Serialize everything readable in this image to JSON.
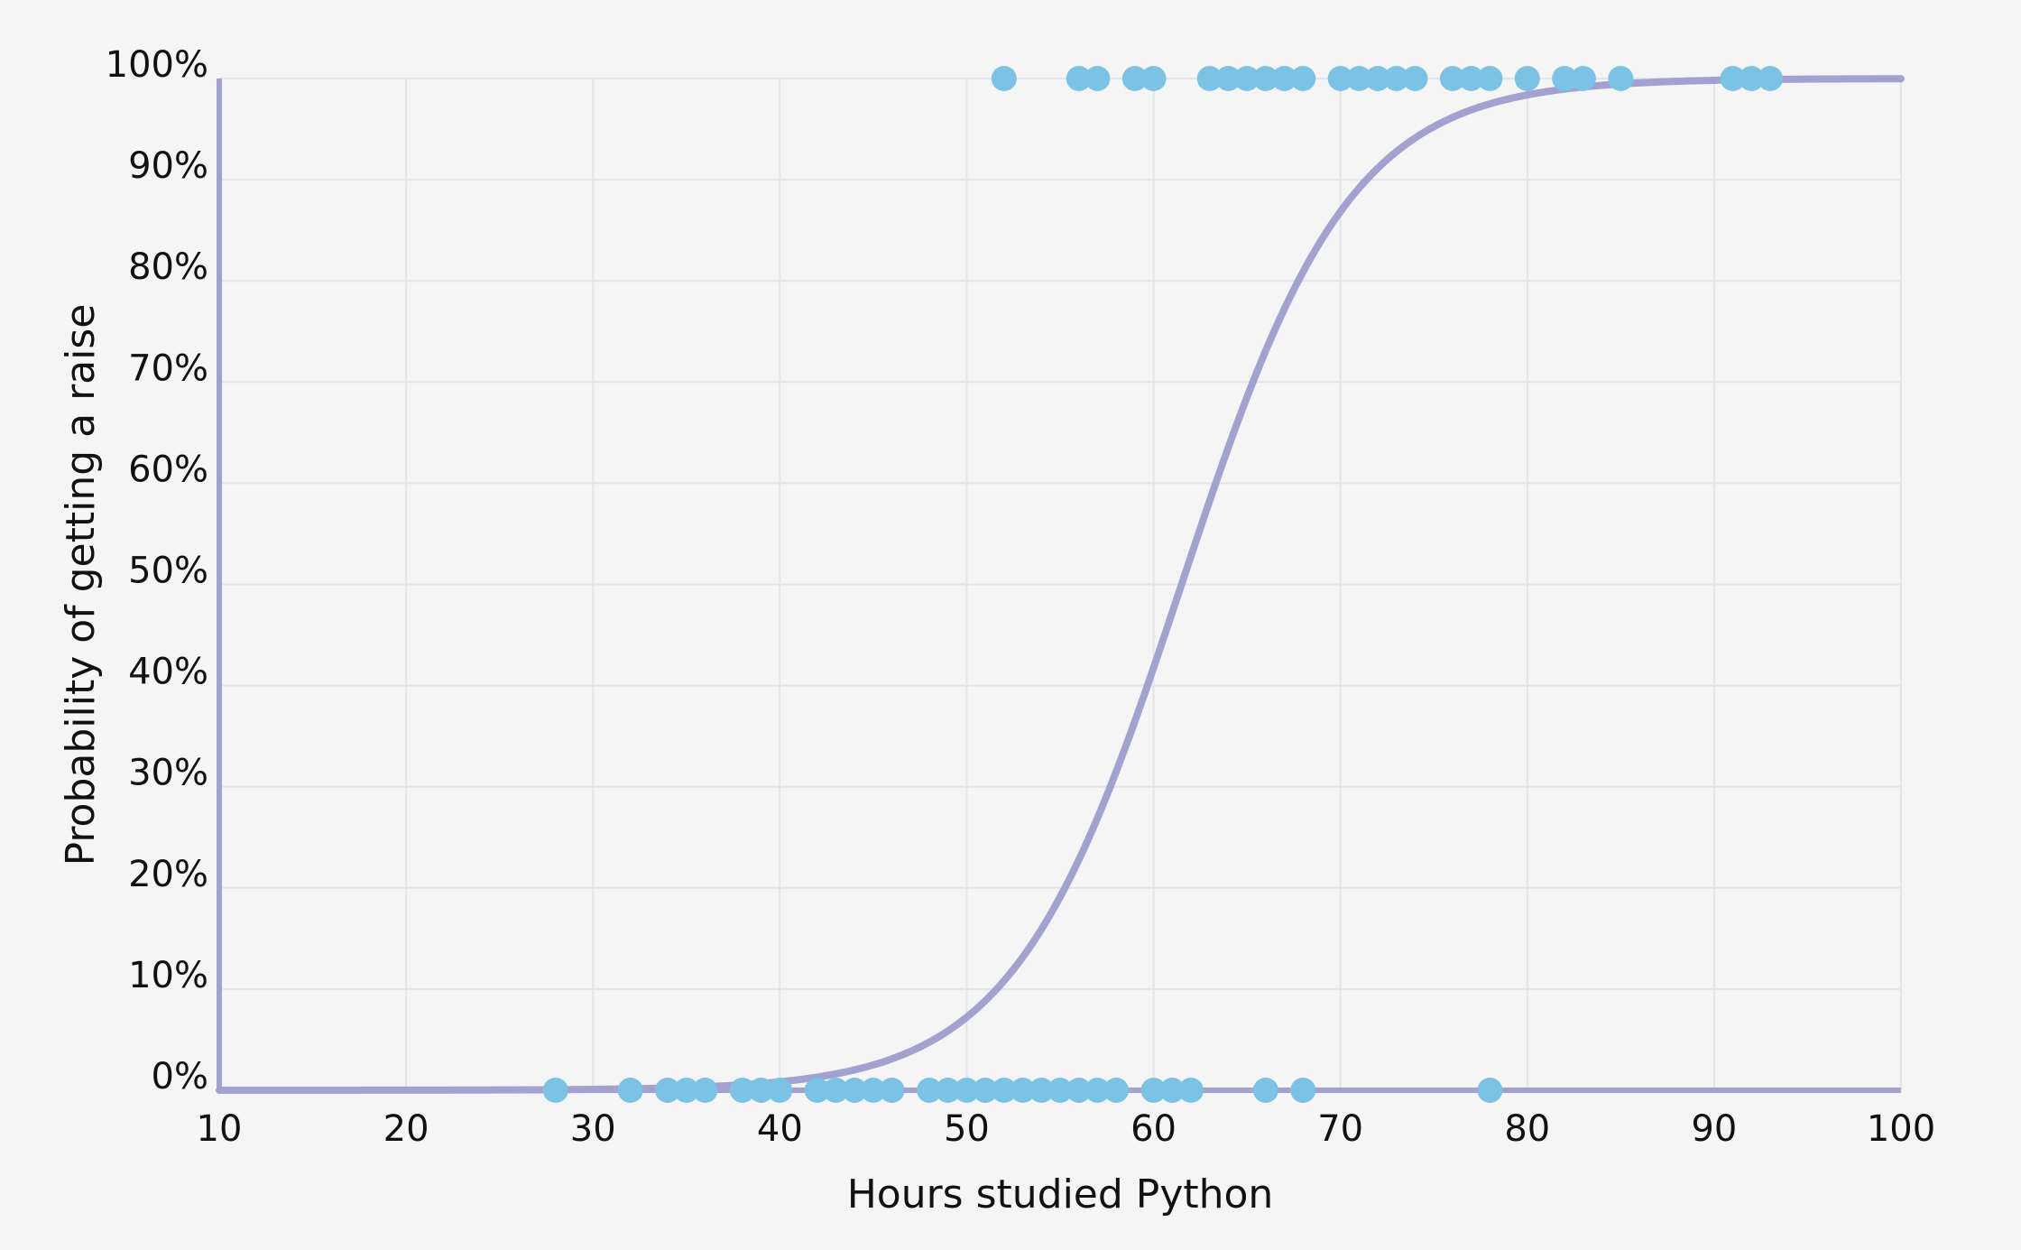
{
  "chart_data": {
    "type": "scatter",
    "title": "",
    "xlabel": "Hours studied Python",
    "ylabel": "Probability of getting a raise",
    "xlim": [
      10,
      100
    ],
    "ylim": [
      0,
      1
    ],
    "x_ticks": [
      10,
      20,
      30,
      40,
      50,
      60,
      70,
      80,
      90,
      100
    ],
    "y_ticks": [
      "0%",
      "10%",
      "20%",
      "30%",
      "40%",
      "50%",
      "60%",
      "70%",
      "80%",
      "90%",
      "100%"
    ],
    "grid": true,
    "colors": {
      "points": "#7bc3e4",
      "curve": "#a3a1cf",
      "axis": "#a3a1cf",
      "grid": "#e4e3e8"
    },
    "logistic_curve": {
      "midpoint": 61.5,
      "steepness": 0.222
    },
    "points": [
      {
        "x": 28,
        "y": 0
      },
      {
        "x": 32,
        "y": 0
      },
      {
        "x": 34,
        "y": 0
      },
      {
        "x": 35,
        "y": 0
      },
      {
        "x": 36,
        "y": 0
      },
      {
        "x": 38,
        "y": 0
      },
      {
        "x": 39,
        "y": 0
      },
      {
        "x": 40,
        "y": 0
      },
      {
        "x": 42,
        "y": 0
      },
      {
        "x": 43,
        "y": 0
      },
      {
        "x": 44,
        "y": 0
      },
      {
        "x": 45,
        "y": 0
      },
      {
        "x": 46,
        "y": 0
      },
      {
        "x": 48,
        "y": 0
      },
      {
        "x": 49,
        "y": 0
      },
      {
        "x": 50,
        "y": 0
      },
      {
        "x": 51,
        "y": 0
      },
      {
        "x": 52,
        "y": 0
      },
      {
        "x": 53,
        "y": 0
      },
      {
        "x": 54,
        "y": 0
      },
      {
        "x": 55,
        "y": 0
      },
      {
        "x": 56,
        "y": 0
      },
      {
        "x": 57,
        "y": 0
      },
      {
        "x": 58,
        "y": 0
      },
      {
        "x": 60,
        "y": 0
      },
      {
        "x": 61,
        "y": 0
      },
      {
        "x": 62,
        "y": 0
      },
      {
        "x": 66,
        "y": 0
      },
      {
        "x": 68,
        "y": 0
      },
      {
        "x": 78,
        "y": 0
      },
      {
        "x": 52,
        "y": 1
      },
      {
        "x": 56,
        "y": 1
      },
      {
        "x": 57,
        "y": 1
      },
      {
        "x": 59,
        "y": 1
      },
      {
        "x": 60,
        "y": 1
      },
      {
        "x": 63,
        "y": 1
      },
      {
        "x": 64,
        "y": 1
      },
      {
        "x": 65,
        "y": 1
      },
      {
        "x": 66,
        "y": 1
      },
      {
        "x": 67,
        "y": 1
      },
      {
        "x": 68,
        "y": 1
      },
      {
        "x": 70,
        "y": 1
      },
      {
        "x": 71,
        "y": 1
      },
      {
        "x": 72,
        "y": 1
      },
      {
        "x": 73,
        "y": 1
      },
      {
        "x": 74,
        "y": 1
      },
      {
        "x": 76,
        "y": 1
      },
      {
        "x": 77,
        "y": 1
      },
      {
        "x": 78,
        "y": 1
      },
      {
        "x": 80,
        "y": 1
      },
      {
        "x": 82,
        "y": 1
      },
      {
        "x": 83,
        "y": 1
      },
      {
        "x": 85,
        "y": 1
      },
      {
        "x": 91,
        "y": 1
      },
      {
        "x": 92,
        "y": 1
      },
      {
        "x": 93,
        "y": 1
      }
    ]
  }
}
